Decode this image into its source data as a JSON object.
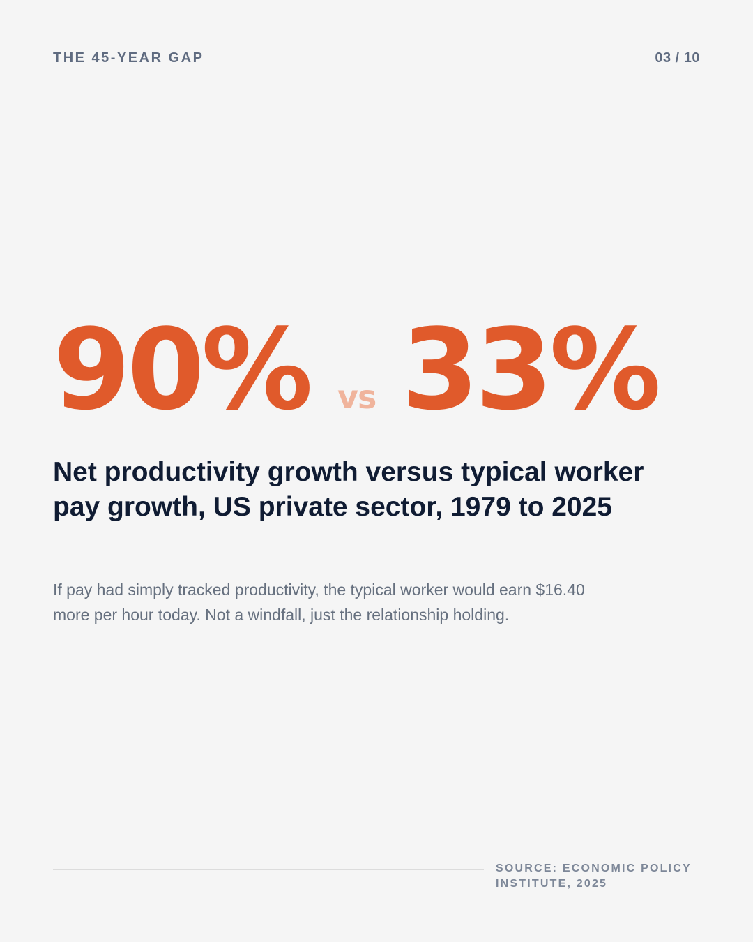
{
  "header": {
    "kicker": "THE 45-YEAR GAP",
    "page": "03 / 10"
  },
  "stats": {
    "left": "90%",
    "separator": "vs",
    "right": "33%"
  },
  "headline": "Net productivity growth versus typical worker pay growth, US private sector, 1979 to 2025",
  "body": "If pay had simply tracked productivity, the typical worker would earn $16.40 more per hour today. Not a windfall, just the relationship holding.",
  "footer": {
    "source": "SOURCE: ECONOMIC POLICY INSTITUTE, 2025"
  }
}
